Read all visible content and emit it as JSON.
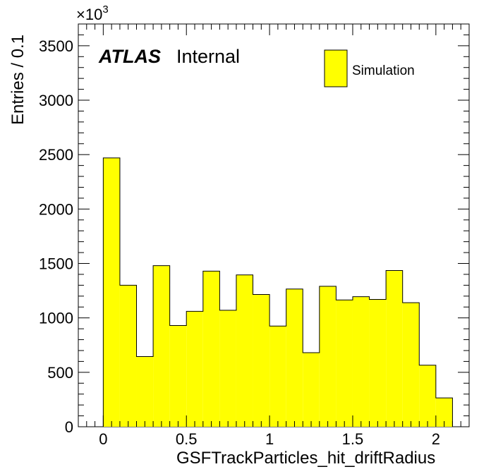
{
  "chart_data": {
    "type": "bar",
    "histogram": true,
    "bin_width": 0.1,
    "bin_edges": [
      0,
      0.1,
      0.2,
      0.3,
      0.4,
      0.5,
      0.6,
      0.7,
      0.8,
      0.9,
      1.0,
      1.1,
      1.2,
      1.3,
      1.4,
      1.5,
      1.6,
      1.7,
      1.8,
      1.9,
      2.0,
      2.1
    ],
    "values": [
      2470,
      1300,
      645,
      1480,
      930,
      1060,
      1430,
      1070,
      1395,
      1215,
      925,
      1265,
      680,
      1290,
      1165,
      1195,
      1170,
      1435,
      1140,
      565,
      265
    ],
    "xlabel": "GSFTrackParticles_hit_driftRadius",
    "ylabel": "Entries / 0.1",
    "xlim": [
      -0.15,
      2.2
    ],
    "ylim": [
      0,
      3700
    ],
    "x_ticks": [
      0,
      0.5,
      1,
      1.5,
      2
    ],
    "x_tick_labels": [
      "0",
      "0.5",
      "1",
      "1.5",
      "2"
    ],
    "y_ticks": [
      0,
      500,
      1000,
      1500,
      2000,
      2500,
      3000,
      3500
    ],
    "y_tick_labels": [
      "0",
      "500",
      "1000",
      "1500",
      "2000",
      "2500",
      "3000",
      "3500"
    ],
    "y_multiplier": "×10",
    "y_multiplier_exp": "3",
    "grid": false,
    "legend": {
      "placement": "top-right",
      "entries": [
        {
          "name": "Simulation",
          "color": "#ffff00"
        }
      ]
    },
    "annotations": {
      "atlas": "ATLAS",
      "status": "Internal"
    },
    "fill_color": "#ffff00",
    "line_color": "#000000"
  }
}
